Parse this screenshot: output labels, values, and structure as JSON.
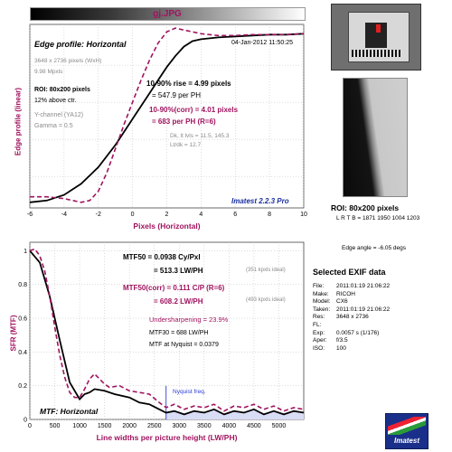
{
  "header": {
    "title": "gj.JPG"
  },
  "chart_data": [
    {
      "type": "line",
      "title": "Edge profile: Horizontal",
      "xlabel": "Pixels (Horizontal)",
      "ylabel": "Edge profile (linear)",
      "xlim": [
        -6,
        10
      ],
      "xticks": [
        -6,
        -4,
        -2,
        0,
        2,
        4,
        6,
        8,
        10
      ],
      "grid": true,
      "series": [
        {
          "name": "edge profile",
          "x": [
            -6,
            -5,
            -4,
            -3,
            -2,
            -1,
            0,
            0.5,
            1,
            1.5,
            2,
            2.5,
            3,
            3.5,
            4,
            5,
            6,
            7,
            8,
            9,
            10
          ],
          "y": [
            0.06,
            0.07,
            0.1,
            0.16,
            0.25,
            0.37,
            0.51,
            0.58,
            0.65,
            0.72,
            0.79,
            0.85,
            0.9,
            0.93,
            0.94,
            0.95,
            0.955,
            0.96,
            0.965,
            0.965,
            0.97
          ]
        },
        {
          "name": "edge profile (corr)",
          "x": [
            -6,
            -5,
            -4,
            -3,
            -2.5,
            -2,
            -1.5,
            -1,
            -0.5,
            0,
            0.5,
            1,
            1.5,
            2,
            2.5,
            3,
            4,
            5,
            6,
            7,
            8,
            9,
            10
          ],
          "y": [
            0.09,
            0.09,
            0.08,
            0.06,
            0.07,
            0.12,
            0.22,
            0.35,
            0.48,
            0.6,
            0.72,
            0.83,
            0.92,
            0.98,
            1.0,
            0.99,
            0.97,
            0.96,
            0.96,
            0.965,
            0.965,
            0.965,
            0.97
          ]
        }
      ],
      "annotations": {
        "timestamp": "04-Jan-2012 11:50:25",
        "size": "3648 x 2736 pixels (WxH)",
        "mpxls": "9.98 Mpxls",
        "roi": "ROI: 80x200 pixels",
        "above": "12% above ctr.",
        "channel": "Y-channel  (YA12)",
        "gamma": "Gamma = 0.5",
        "rise": "10-90% rise = 4.99 pixels",
        "rise_ph": "= 547.9 per PH",
        "rise_corr": "10-90%(corr) = 4.01 pixels",
        "rise_corr_ph": "= 683 per PH   (R=6)",
        "dk_lt": "Dk, lt lvls = 11.5, 145.3",
        "lt_dk": "Lt/dk = 12.7",
        "brand": "Imatest 2.2.3 Pro"
      }
    },
    {
      "type": "line",
      "title": "MTF: Horizontal",
      "xlabel": "Line widths per picture height (LW/PH)",
      "ylabel": "SFR (MTF)",
      "xlim": [
        0,
        5500
      ],
      "ylim": [
        0,
        1.05
      ],
      "xticks": [
        0,
        500,
        1000,
        1500,
        2000,
        2500,
        3000,
        3500,
        4000,
        4500,
        5000
      ],
      "yticks": [
        0,
        0.2,
        0.4,
        0.6,
        0.8,
        1
      ],
      "grid": true,
      "nyquist_x": 2736,
      "series": [
        {
          "name": "MTF",
          "x": [
            0,
            200,
            400,
            600,
            800,
            1000,
            1100,
            1200,
            1300,
            1500,
            1700,
            2000,
            2200,
            2400,
            2600,
            2736,
            2900,
            3100,
            3300,
            3500,
            3700,
            3900,
            4100,
            4300,
            4500,
            4700,
            4900,
            5100,
            5300,
            5500
          ],
          "y": [
            1.0,
            0.93,
            0.73,
            0.47,
            0.22,
            0.12,
            0.15,
            0.16,
            0.18,
            0.17,
            0.15,
            0.13,
            0.1,
            0.09,
            0.06,
            0.04,
            0.05,
            0.03,
            0.05,
            0.04,
            0.06,
            0.03,
            0.05,
            0.04,
            0.06,
            0.03,
            0.05,
            0.03,
            0.05,
            0.04
          ]
        },
        {
          "name": "MTF (corr)",
          "x": [
            0,
            100,
            200,
            300,
            400,
            500,
            600,
            700,
            800,
            900,
            1000,
            1100,
            1200,
            1300,
            1400,
            1500,
            1600,
            1800,
            2000,
            2200,
            2400,
            2600,
            2736,
            2900,
            3100,
            3300,
            3500,
            3700,
            3900,
            4100,
            4300,
            4500,
            4700,
            4900,
            5100,
            5300,
            5500
          ],
          "y": [
            1.0,
            1.01,
            0.97,
            0.88,
            0.73,
            0.55,
            0.38,
            0.25,
            0.16,
            0.13,
            0.13,
            0.18,
            0.24,
            0.27,
            0.24,
            0.21,
            0.19,
            0.2,
            0.17,
            0.16,
            0.15,
            0.1,
            0.07,
            0.09,
            0.06,
            0.08,
            0.07,
            0.09,
            0.05,
            0.08,
            0.07,
            0.09,
            0.06,
            0.08,
            0.05,
            0.07,
            0.06
          ]
        }
      ],
      "annotations": {
        "mtf50": "MTF50 = 0.0938 Cy/Pxl",
        "mtf50_lw": "= 513.3 LW/PH",
        "mtf50_ideal": "(351 kpxls ideal)",
        "mtf50c": "MTF50(corr) = 0.111 C/P   (R=6)",
        "mtf50c_lw": "= 608.2 LW/PH",
        "mtf50c_ideal": "(493 kpxls ideal)",
        "under": "Undersharpening = 23.9%",
        "mtf30": "MTF30 = 688 LW/PH",
        "nyq_mtf": "MTF at Nyquist = 0.0379",
        "nyq_label": "Nyquist freq."
      }
    }
  ],
  "roi": {
    "label": "ROI: 80x200 pixels",
    "coords": "L R T B = 1871 1950  1004 1203",
    "edge_angle": "Edge angle = -6.05 degs"
  },
  "exif": {
    "title": "Selected EXIF data",
    "rows": [
      {
        "k": "File:",
        "v": "2011:01:19 21:06:22"
      },
      {
        "k": "Make:",
        "v": "RICOH"
      },
      {
        "k": "Model:",
        "v": "CX6"
      },
      {
        "k": "Taken:",
        "v": "2011:01:19 21:06:22"
      },
      {
        "k": "Res:",
        "v": "3648 x 2736"
      },
      {
        "k": "FL:",
        "v": ""
      },
      {
        "k": "Exp:",
        "v": "0.0057 s  (1/176)"
      },
      {
        "k": "Aper:",
        "v": "f/3.5"
      },
      {
        "k": "ISO:",
        "v": "100"
      }
    ]
  },
  "logo": {
    "text": "Imatest"
  },
  "colors": {
    "accent": "#a0135f",
    "ideal": "#8a8a8a",
    "nyquist": "#2a3bd6",
    "brand": "#1a2fa0"
  }
}
